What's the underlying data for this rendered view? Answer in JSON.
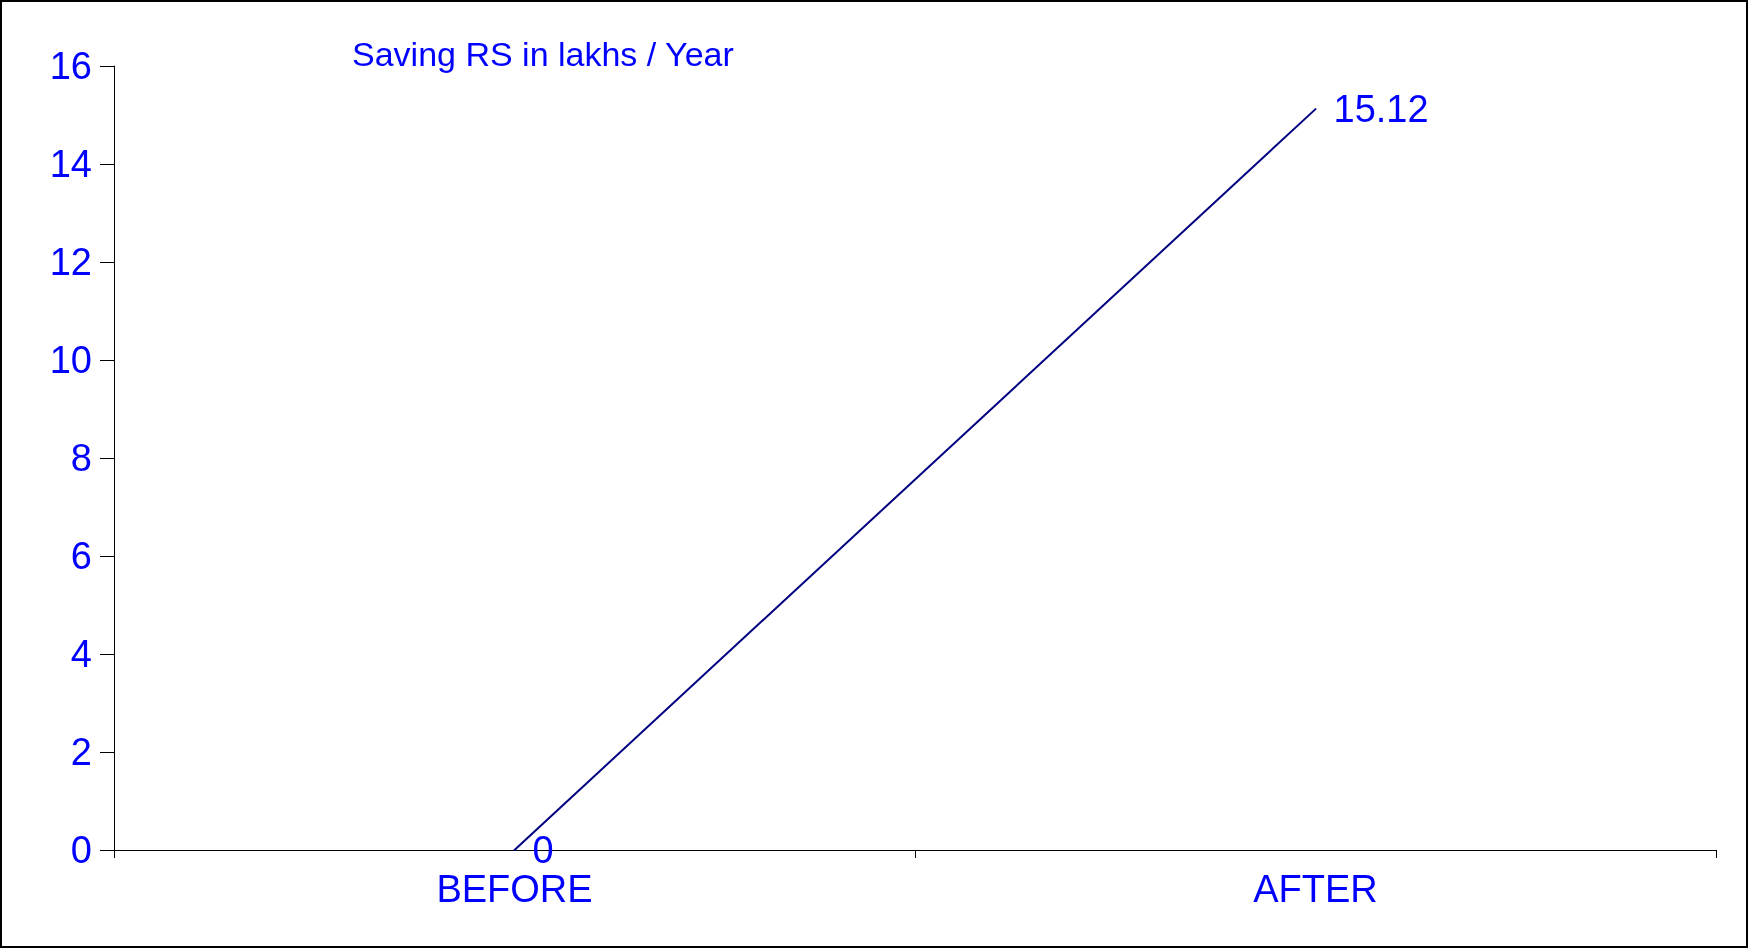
{
  "chart_data": {
    "type": "line",
    "title": "Saving RS in lakhs / Year",
    "categories": [
      "BEFORE",
      "AFTER"
    ],
    "series": [
      {
        "color": "#000080",
        "values": [
          0,
          15.12
        ]
      }
    ],
    "ylim": [
      0,
      16
    ],
    "yticks": [
      0,
      2,
      4,
      6,
      8,
      10,
      12,
      14,
      16
    ],
    "data_labels": true,
    "marker": "none",
    "line_style": "solid"
  }
}
